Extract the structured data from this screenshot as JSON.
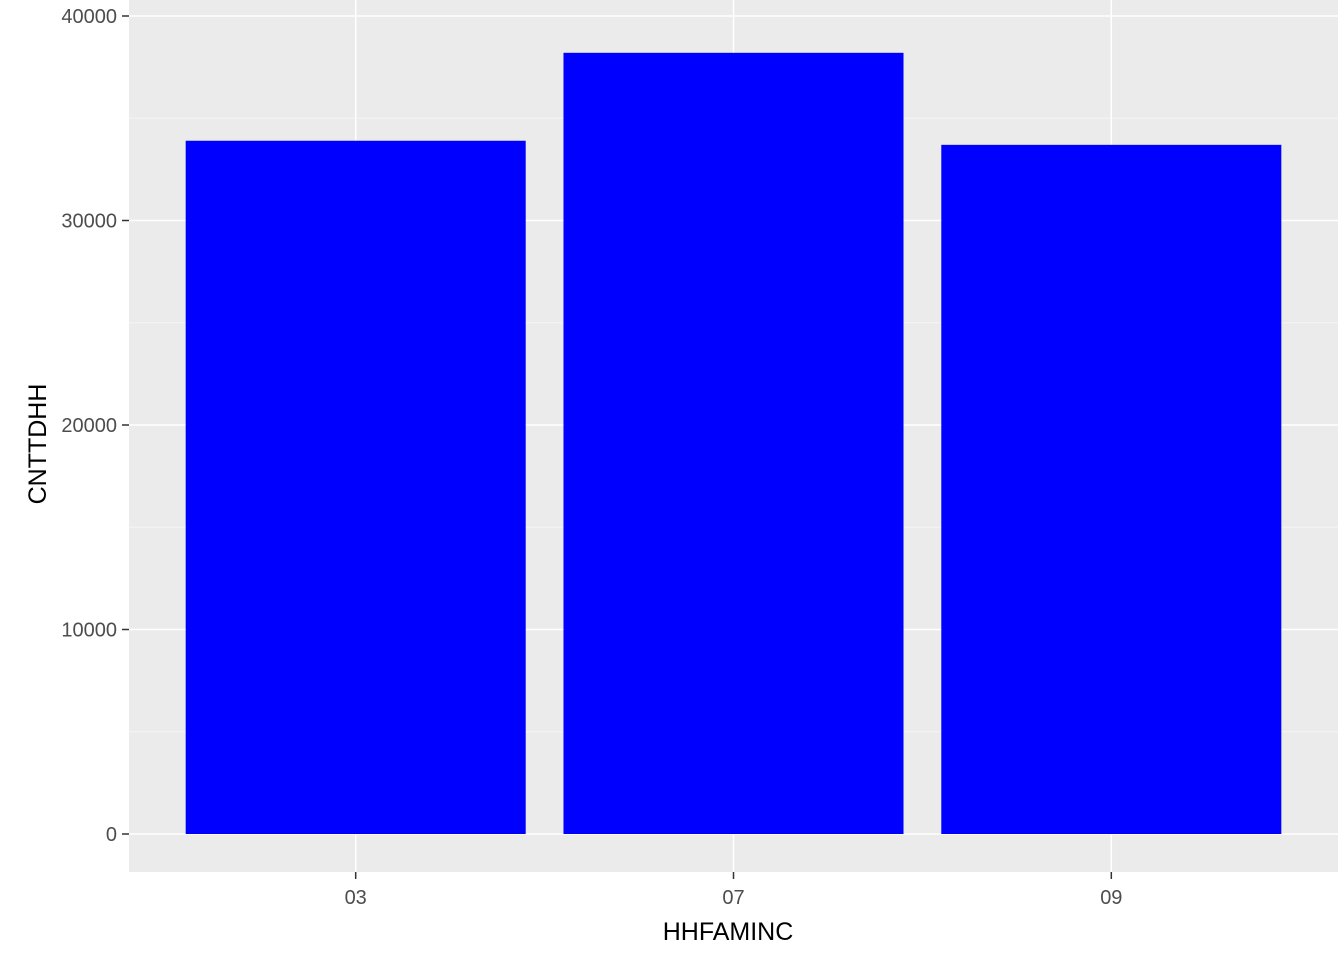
{
  "chart_data": {
    "type": "bar",
    "title": "",
    "xlabel": "HHFAMINC",
    "ylabel": "CNTTDHH",
    "categories": [
      "03",
      "07",
      "09"
    ],
    "values": [
      33900,
      38200,
      33700
    ],
    "ylim": [
      0,
      40000
    ],
    "yticks": [
      0,
      10000,
      20000,
      30000,
      40000
    ],
    "yticks_labels": [
      "0",
      "10000",
      "20000",
      "30000",
      "40000"
    ],
    "grid": true,
    "legend": "none",
    "colors": {
      "bar": "#0000ff",
      "panel": "#ebebeb",
      "grid_major": "#ffffff",
      "grid_minor": "#f5f5f5"
    }
  }
}
